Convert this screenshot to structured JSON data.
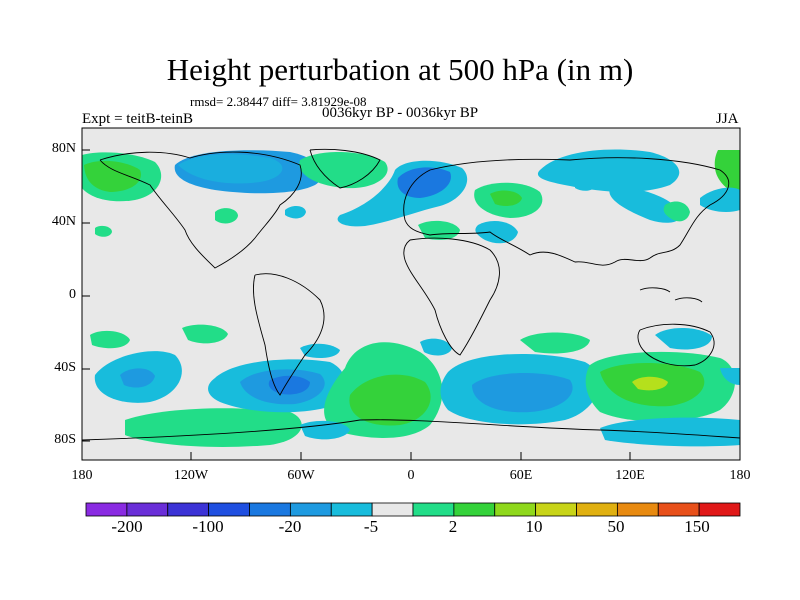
{
  "title": "Height perturbation at 500 hPa (in m)",
  "stats": "rmsd= 2.38447 diff= 3.81929e-08",
  "experiment": "Expt = teitB-teinB",
  "period": "0036kyr BP - 0036kyr BP",
  "season": "JJA",
  "lat_labels": [
    "80N",
    "40N",
    "0",
    "40S",
    "80S"
  ],
  "lon_labels": [
    "180",
    "120W",
    "60W",
    "0",
    "60E",
    "120E",
    "180"
  ],
  "colorbar": {
    "labels": [
      "-200",
      "-100",
      "-20",
      "-5",
      "2",
      "10",
      "50",
      "150"
    ],
    "colors": [
      "#8a2be2",
      "#6a2ed8",
      "#3c33d6",
      "#1f4fe0",
      "#1a78e0",
      "#1e9ae0",
      "#18bcdc",
      "#e8e8e8",
      "#22dd88",
      "#34d23a",
      "#8fd81c",
      "#c8d418",
      "#e0b010",
      "#e88a10",
      "#e8501a",
      "#e01818"
    ]
  },
  "colors": {
    "ocean_bg": "#e8e8e8",
    "blue_light": "#18bcdc",
    "blue_mid": "#1e9ae0",
    "blue_dark": "#1a78e0",
    "green_light": "#22dd88",
    "green_mid": "#34d23a",
    "yellow_green": "#b5e01c"
  }
}
